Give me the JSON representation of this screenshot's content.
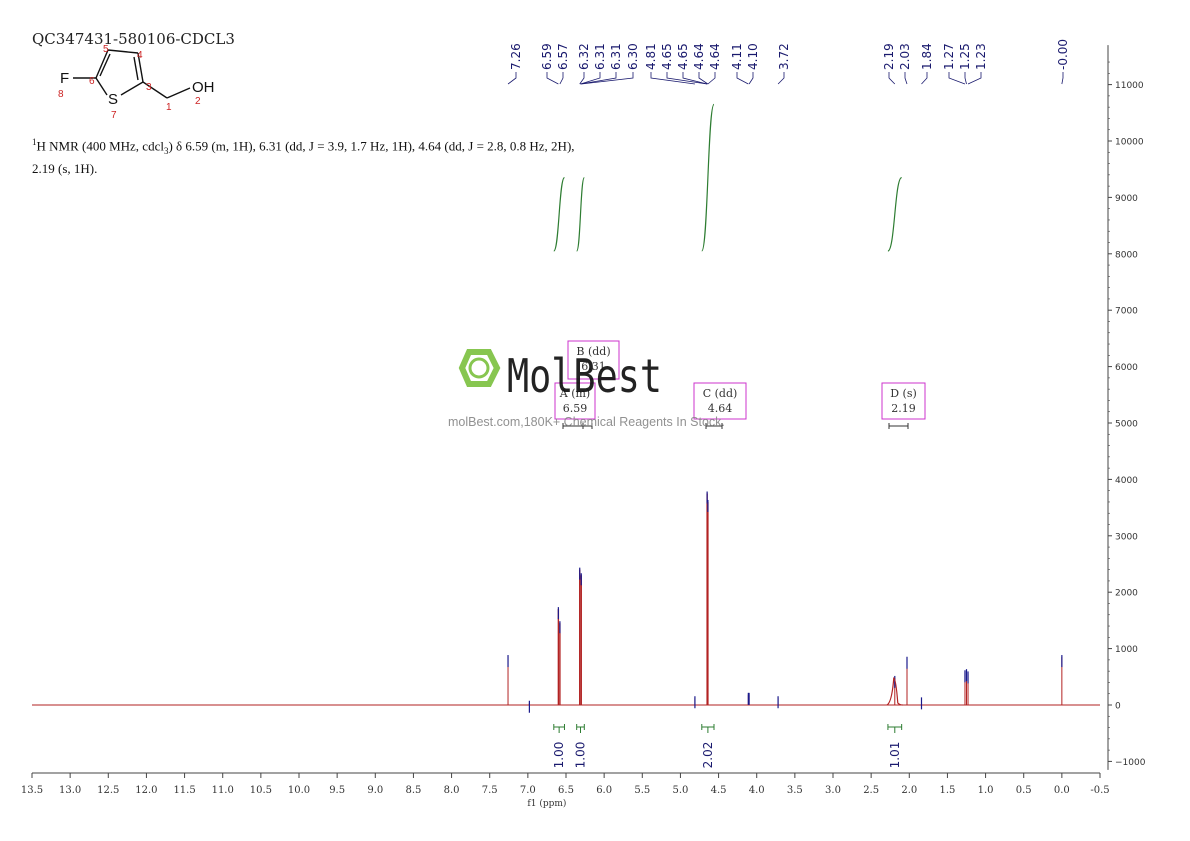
{
  "sample_id": "QC347431-580106-CDCL3",
  "molecule": {
    "atoms": [
      {
        "symbol": "F",
        "index": "8"
      },
      {
        "symbol": "S",
        "index": "7"
      },
      {
        "symbol": "OH",
        "index": "2"
      }
    ],
    "carbon_numbers": [
      "1",
      "3",
      "4",
      "5",
      "6"
    ]
  },
  "nmr_description_line1_prefix": "H NMR (400 MHz, cdcl",
  "nmr_description_line1_sup": "1",
  "nmr_description_line1_sub": "3",
  "nmr_description_line1_rest": ") δ 6.59 (m, 1H), 6.31 (dd, J = 3.9, 1.7 Hz, 1H), 4.64 (dd, J = 2.8, 0.8 Hz, 2H),",
  "nmr_description_line2": "2.19 (s, 1H).",
  "watermark": {
    "brand": "MolBest",
    "tagline": "molBest.com,180K+ Chemical Reagents In Stock."
  },
  "colors": {
    "spectrum": "#b22222",
    "peak_top": "#1a1a8c",
    "integral": "#2e7d32",
    "multiplet_box": "#cc33cc",
    "watermark_green": "#7dc242",
    "axis": "#444444"
  },
  "chart_data": {
    "type": "line",
    "title": "",
    "xlabel": "f1 (ppm)",
    "ylabel": "",
    "xlim": [
      13.5,
      -0.5
    ],
    "ylim": [
      -1000,
      11000
    ],
    "x_ticks": [
      "13.5",
      "13.0",
      "12.5",
      "12.0",
      "11.5",
      "11.0",
      "10.5",
      "10.0",
      "9.5",
      "9.0",
      "8.5",
      "8.0",
      "7.5",
      "7.0",
      "6.5",
      "6.0",
      "5.5",
      "5.0",
      "4.5",
      "4.0",
      "3.5",
      "3.0",
      "2.5",
      "2.0",
      "1.5",
      "1.0",
      "0.5",
      "0.0",
      "-0.5"
    ],
    "y_ticks": [
      "11000",
      "10000",
      "9000",
      "8000",
      "7000",
      "6000",
      "5000",
      "4000",
      "3000",
      "2000",
      "1000",
      "0",
      "-1000"
    ],
    "peak_labels": [
      "7.26",
      "6.59",
      "6.57",
      "6.32",
      "6.31",
      "6.31",
      "6.30",
      "4.81",
      "4.65",
      "4.65",
      "4.64",
      "4.64",
      "4.11",
      "4.10",
      "3.72",
      "2.19",
      "2.03",
      "1.84",
      "1.27",
      "1.25",
      "1.23",
      "-0.00"
    ],
    "peaks": [
      {
        "ppm": 7.26,
        "height": 850
      },
      {
        "ppm": 6.98,
        "height": 40
      },
      {
        "ppm": 6.6,
        "height": 1700
      },
      {
        "ppm": 6.58,
        "height": 1450
      },
      {
        "ppm": 6.32,
        "height": 2400
      },
      {
        "ppm": 6.3,
        "height": 2300
      },
      {
        "ppm": 4.81,
        "height": 120
      },
      {
        "ppm": 4.65,
        "height": 3750
      },
      {
        "ppm": 4.64,
        "height": 3600
      },
      {
        "ppm": 4.11,
        "height": 180
      },
      {
        "ppm": 4.1,
        "height": 180
      },
      {
        "ppm": 3.72,
        "height": 120
      },
      {
        "ppm": 2.19,
        "height": 480
      },
      {
        "ppm": 2.03,
        "height": 820
      },
      {
        "ppm": 1.84,
        "height": 100
      },
      {
        "ppm": 1.27,
        "height": 580
      },
      {
        "ppm": 1.25,
        "height": 600
      },
      {
        "ppm": 1.23,
        "height": 560
      },
      {
        "ppm": 0.0,
        "height": 850
      }
    ],
    "integrals": [
      {
        "from": 6.66,
        "to": 6.52,
        "value": "1.00",
        "bottom": 8050,
        "top": 9350
      },
      {
        "from": 6.36,
        "to": 6.26,
        "value": "1.00",
        "bottom": 8050,
        "top": 9350
      },
      {
        "from": 4.72,
        "to": 4.56,
        "value": "2.02",
        "bottom": 8050,
        "top": 10650
      },
      {
        "from": 2.28,
        "to": 2.1,
        "value": "1.01",
        "bottom": 8050,
        "top": 9350
      }
    ],
    "multiplets": [
      {
        "label": "A (m)",
        "shift": "6.59",
        "ppm": 6.59
      },
      {
        "label": "B (dd)",
        "shift": "6.31",
        "ppm": 6.31
      },
      {
        "label": "C (dd)",
        "shift": "4.64",
        "ppm": 4.64
      },
      {
        "label": "D (s)",
        "shift": "2.19",
        "ppm": 2.19
      }
    ]
  }
}
